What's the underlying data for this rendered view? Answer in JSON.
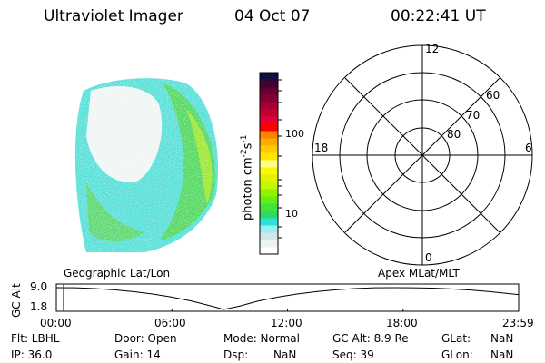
{
  "header": {
    "instrument": "Ultraviolet Imager",
    "date": "04 Oct 07",
    "time": "00:22:41 UT"
  },
  "colorbar": {
    "label_main": "photon cm",
    "label_exp1": "-2",
    "label_mid": "s",
    "label_exp2": "-1",
    "ticks": [
      "100",
      "10"
    ],
    "scale": "log",
    "colors": [
      "#ffffff",
      "#eaf4ee",
      "#d6e6e4",
      "#98eef2",
      "#2ce2d8",
      "#2cda68",
      "#44e23c",
      "#62f014",
      "#92f000",
      "#c2f800",
      "#e2f200",
      "#f8fa00",
      "#ffff84",
      "#ffe400",
      "#ffca00",
      "#ffaa00",
      "#ff8200",
      "#ff0000",
      "#e00034",
      "#c40030",
      "#a40032",
      "#840030",
      "#660032",
      "#44002e",
      "#10103e"
    ]
  },
  "polar": {
    "mlt_labels": {
      "top": "12",
      "bottom": "0",
      "left": "18",
      "right": "6"
    },
    "lat_labels": [
      "80",
      "70",
      "60"
    ]
  },
  "timeline": {
    "left_label": "Geographic Lat/Lon",
    "right_label": "Apex  MLat/MLT",
    "ylabel": "GC Alt",
    "yticks": [
      "9.0",
      "1.8"
    ],
    "xticks": [
      "00:00",
      "06:00",
      "12:00",
      "18:00",
      "23:59"
    ],
    "current_hour": 0.378,
    "marker_color": "#ff0000",
    "chart_data": {
      "type": "line",
      "x_hours": [
        0,
        1,
        2,
        3,
        4,
        5,
        6,
        7,
        8,
        8.7,
        9.5,
        10.5,
        11.5,
        12.5,
        13.5,
        14.5,
        15.5,
        16.5,
        17.5,
        18.5,
        19.5,
        20.5,
        21.5,
        22.5,
        23.98
      ],
      "y_re": [
        9.0,
        8.95,
        8.7,
        8.3,
        7.7,
        6.9,
        5.9,
        4.6,
        3.0,
        1.8,
        2.9,
        4.6,
        5.9,
        6.9,
        7.7,
        8.3,
        8.7,
        8.95,
        9.0,
        8.98,
        8.85,
        8.6,
        8.2,
        7.7,
        6.7
      ],
      "ylim": [
        1.8,
        9.0
      ],
      "xlim": [
        0,
        24
      ]
    }
  },
  "status": {
    "flt": "Flt: LBHL",
    "ip": "IP: 36.0",
    "door": "Door: Open",
    "gain": "Gain: 14",
    "mode": "Mode: Normal",
    "dsp_label": "Dsp:",
    "dsp_value": "NaN",
    "gcalt": "GC Alt: 8.9 Re",
    "seq": "Seq: 39",
    "glat_label": "GLat:",
    "glat_value": "NaN",
    "glon_label": "GLon:",
    "glon_value": "NaN"
  }
}
